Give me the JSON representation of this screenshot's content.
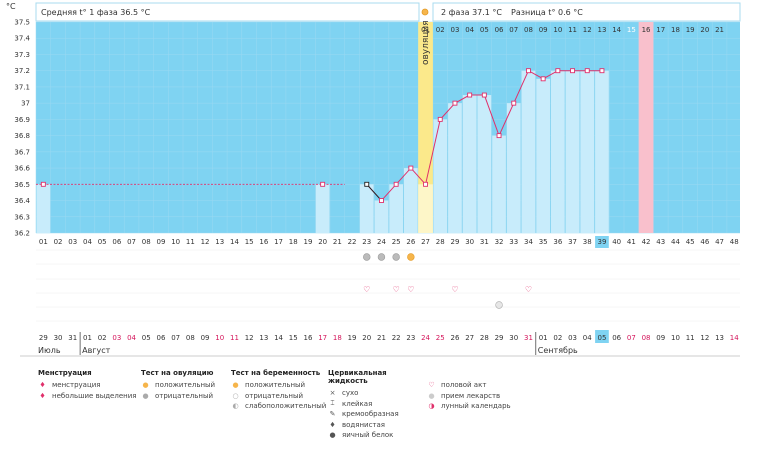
{
  "unit_label": "°C",
  "header": {
    "phase1": "Средняя t° 1 фаза 36.5 °C",
    "phase2": "2 фаза 37.1 °C",
    "diff": "Разница t° 0.6 °C"
  },
  "ovulation_label": "овуляция",
  "colors": {
    "period_bg": "#b8e4f7",
    "cycle_bg": "#7fd3f2",
    "bar": "#c8ecfb",
    "ovulation": "#fbe98b",
    "highlight_day": "#f9c0cc",
    "line": "#e0306b",
    "accent_box": "#7fd3f2"
  },
  "chart_data": {
    "type": "line",
    "title": "",
    "ylabel": "°C",
    "ylim": [
      36.2,
      37.5
    ],
    "y_ticks": [
      "37.5",
      "37.4",
      "37.3",
      "37.2",
      "37.1",
      "37",
      "36.9",
      "36.8",
      "36.7",
      "36.6",
      "36.5",
      "36.4",
      "36.3",
      "36.2"
    ],
    "cycle_days": [
      "01",
      "02",
      "03",
      "04",
      "05",
      "06",
      "07",
      "08",
      "09",
      "10",
      "11",
      "12",
      "13",
      "14",
      "15",
      "16",
      "17",
      "18",
      "19",
      "20",
      "21",
      "22",
      "23",
      "24",
      "25",
      "26",
      "27",
      "28",
      "29",
      "30",
      "31",
      "32",
      "33",
      "34",
      "35",
      "36",
      "37",
      "38",
      "39",
      "40",
      "41",
      "42",
      "43",
      "44",
      "45",
      "46",
      "47",
      "48"
    ],
    "top_days": [
      "01",
      "02",
      "03",
      "04",
      "05",
      "06",
      "07",
      "08",
      "09",
      "10",
      "11",
      "12",
      "13",
      "14",
      "15",
      "16",
      "17",
      "18",
      "19",
      "20",
      "21"
    ],
    "top_days_red": [
      "15"
    ],
    "current_cycle_day": "39",
    "highlight_day": "42",
    "ovulation_day": 27,
    "coverline": 36.5,
    "temperatures": [
      {
        "day": 1,
        "temp": 36.5
      },
      {
        "day": 20,
        "temp": 36.5
      },
      {
        "day": 23,
        "temp": 36.5
      },
      {
        "day": 24,
        "temp": 36.4
      },
      {
        "day": 25,
        "temp": 36.5
      },
      {
        "day": 26,
        "temp": 36.6
      },
      {
        "day": 27,
        "temp": 36.5
      },
      {
        "day": 28,
        "temp": 36.9
      },
      {
        "day": 29,
        "temp": 37.0
      },
      {
        "day": 30,
        "temp": 37.05
      },
      {
        "day": 31,
        "temp": 37.05
      },
      {
        "day": 32,
        "temp": 36.8
      },
      {
        "day": 33,
        "temp": 37.0
      },
      {
        "day": 34,
        "temp": 37.2
      },
      {
        "day": 35,
        "temp": 37.15
      },
      {
        "day": 36,
        "temp": 37.2
      },
      {
        "day": 37,
        "temp": 37.2
      },
      {
        "day": 38,
        "temp": 37.2
      },
      {
        "day": 39,
        "temp": 37.2
      }
    ],
    "calendar_dates": [
      "29",
      "30",
      "31",
      "01",
      "02",
      "03",
      "04",
      "05",
      "06",
      "07",
      "08",
      "09",
      "10",
      "11",
      "12",
      "13",
      "14",
      "15",
      "16",
      "17",
      "18",
      "19",
      "20",
      "21",
      "22",
      "23",
      "24",
      "25",
      "26",
      "27",
      "28",
      "29",
      "30",
      "31",
      "01",
      "02",
      "03",
      "04",
      "05",
      "06",
      "07",
      "08",
      "09",
      "10",
      "11",
      "12",
      "13",
      "14"
    ],
    "calendar_dates_red": [
      6,
      7,
      13,
      14,
      20,
      21,
      27,
      28,
      34,
      41,
      42,
      48
    ],
    "today_index": 39,
    "months": [
      {
        "label": "Июль",
        "start": 1
      },
      {
        "label": "Август",
        "start": 4
      },
      {
        "label": "Сентябрь",
        "start": 35
      }
    ],
    "ovulation_tests": [
      {
        "day": 23,
        "result": "negative"
      },
      {
        "day": 24,
        "result": "negative"
      },
      {
        "day": 25,
        "result": "negative"
      },
      {
        "day": 26,
        "result": "positive"
      }
    ],
    "intercourse_days": [
      23,
      25,
      26,
      29,
      34
    ],
    "medication_days": [
      32
    ]
  },
  "legend": {
    "groups": [
      {
        "title": "Менструация",
        "items": [
          {
            "label": "менструация",
            "icon": "drops-icon"
          },
          {
            "label": "небольшие выделения",
            "icon": "drop-icon"
          }
        ]
      },
      {
        "title": "Тест на овуляцию",
        "items": [
          {
            "label": "положительный",
            "icon": "sun-positive-icon"
          },
          {
            "label": "отрицательный",
            "icon": "sun-negative-icon"
          }
        ]
      },
      {
        "title": "Тест на беременность",
        "items": [
          {
            "label": "положительный",
            "icon": "smile-positive-icon"
          },
          {
            "label": "отрицательный",
            "icon": "smile-negative-icon"
          },
          {
            "label": "слабоположительный",
            "icon": "smile-weak-icon"
          }
        ]
      },
      {
        "title": "Цервикальная жидкость",
        "items": [
          {
            "label": "сухо",
            "icon": "dry-icon"
          },
          {
            "label": "клейкая",
            "icon": "sticky-icon"
          },
          {
            "label": "кремообразная",
            "icon": "creamy-icon"
          },
          {
            "label": "водянистая",
            "icon": "watery-icon"
          },
          {
            "label": "яичный белок",
            "icon": "eggwhite-icon"
          }
        ]
      },
      {
        "title": "",
        "items": [
          {
            "label": "половой акт",
            "icon": "heart-icon"
          },
          {
            "label": "прием лекарств",
            "icon": "pill-icon"
          },
          {
            "label": "лунный календарь",
            "icon": "moon-icon"
          }
        ]
      }
    ]
  }
}
